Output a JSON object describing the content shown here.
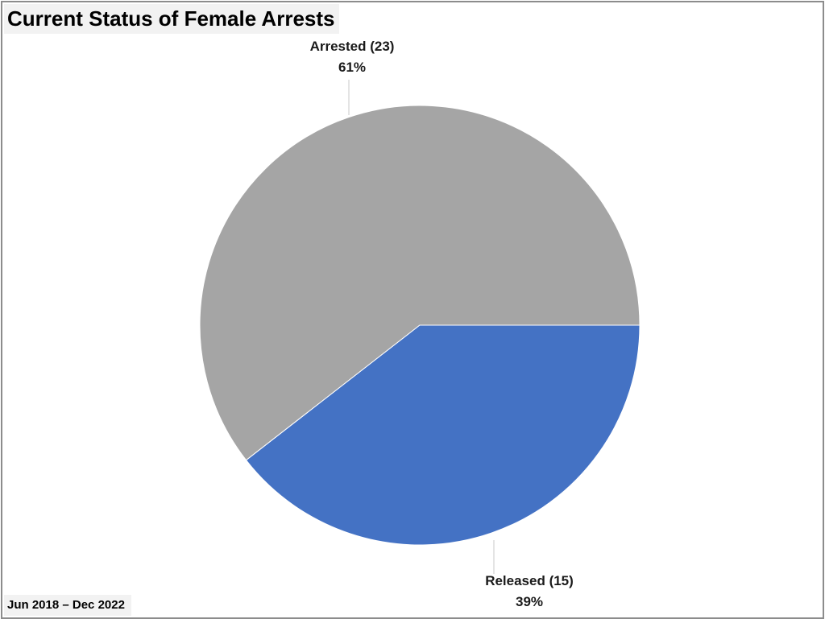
{
  "chart_data": {
    "type": "pie",
    "title": "Current Status of Female Arrests",
    "footnote": "Jun 2018 – Dec 2022",
    "slices": [
      {
        "name": "Arrested",
        "count": 23,
        "percent": 61,
        "label": "Arrested (23)",
        "pct_label": "61%",
        "color": "#a5a5a5"
      },
      {
        "name": "Released",
        "count": 15,
        "percent": 39,
        "label": "Released (15)",
        "pct_label": "39%",
        "color": "#4472c4"
      }
    ]
  }
}
